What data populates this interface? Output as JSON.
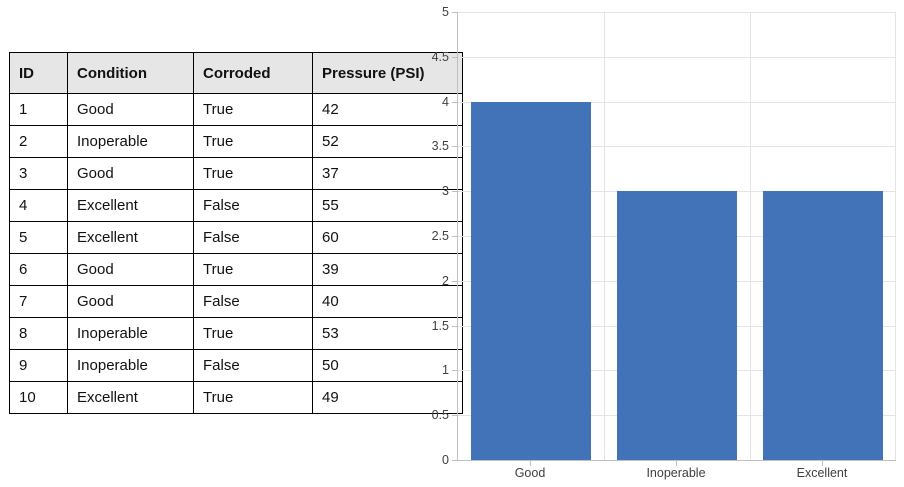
{
  "table": {
    "columns": [
      "ID",
      "Condition",
      "Corroded",
      "Pressure (PSI)"
    ],
    "rows": [
      [
        "1",
        "Good",
        "True",
        "42"
      ],
      [
        "2",
        "Inoperable",
        "True",
        "52"
      ],
      [
        "3",
        "Good",
        "True",
        "37"
      ],
      [
        "4",
        "Excellent",
        "False",
        "55"
      ],
      [
        "5",
        "Excellent",
        "False",
        "60"
      ],
      [
        "6",
        "Good",
        "True",
        "39"
      ],
      [
        "7",
        "Good",
        "False",
        "40"
      ],
      [
        "8",
        "Inoperable",
        "True",
        "53"
      ],
      [
        "9",
        "Inoperable",
        "False",
        "50"
      ],
      [
        "10",
        "Excellent",
        "True",
        "49"
      ]
    ]
  },
  "chart_data": {
    "type": "bar",
    "categories": [
      "Good",
      "Inoperable",
      "Excellent"
    ],
    "values": [
      4,
      3,
      3
    ],
    "title": "",
    "xlabel": "",
    "ylabel": "",
    "ylim": [
      0,
      5
    ],
    "ytick_step": 0.5,
    "grid": true,
    "legend": false,
    "bar_color": "#4272B8",
    "gridline_color": "#E4E4E4",
    "axis_color": "#BFBFBF",
    "tick_label_color": "#404040",
    "header_bg_color": "#E7E6E6"
  }
}
